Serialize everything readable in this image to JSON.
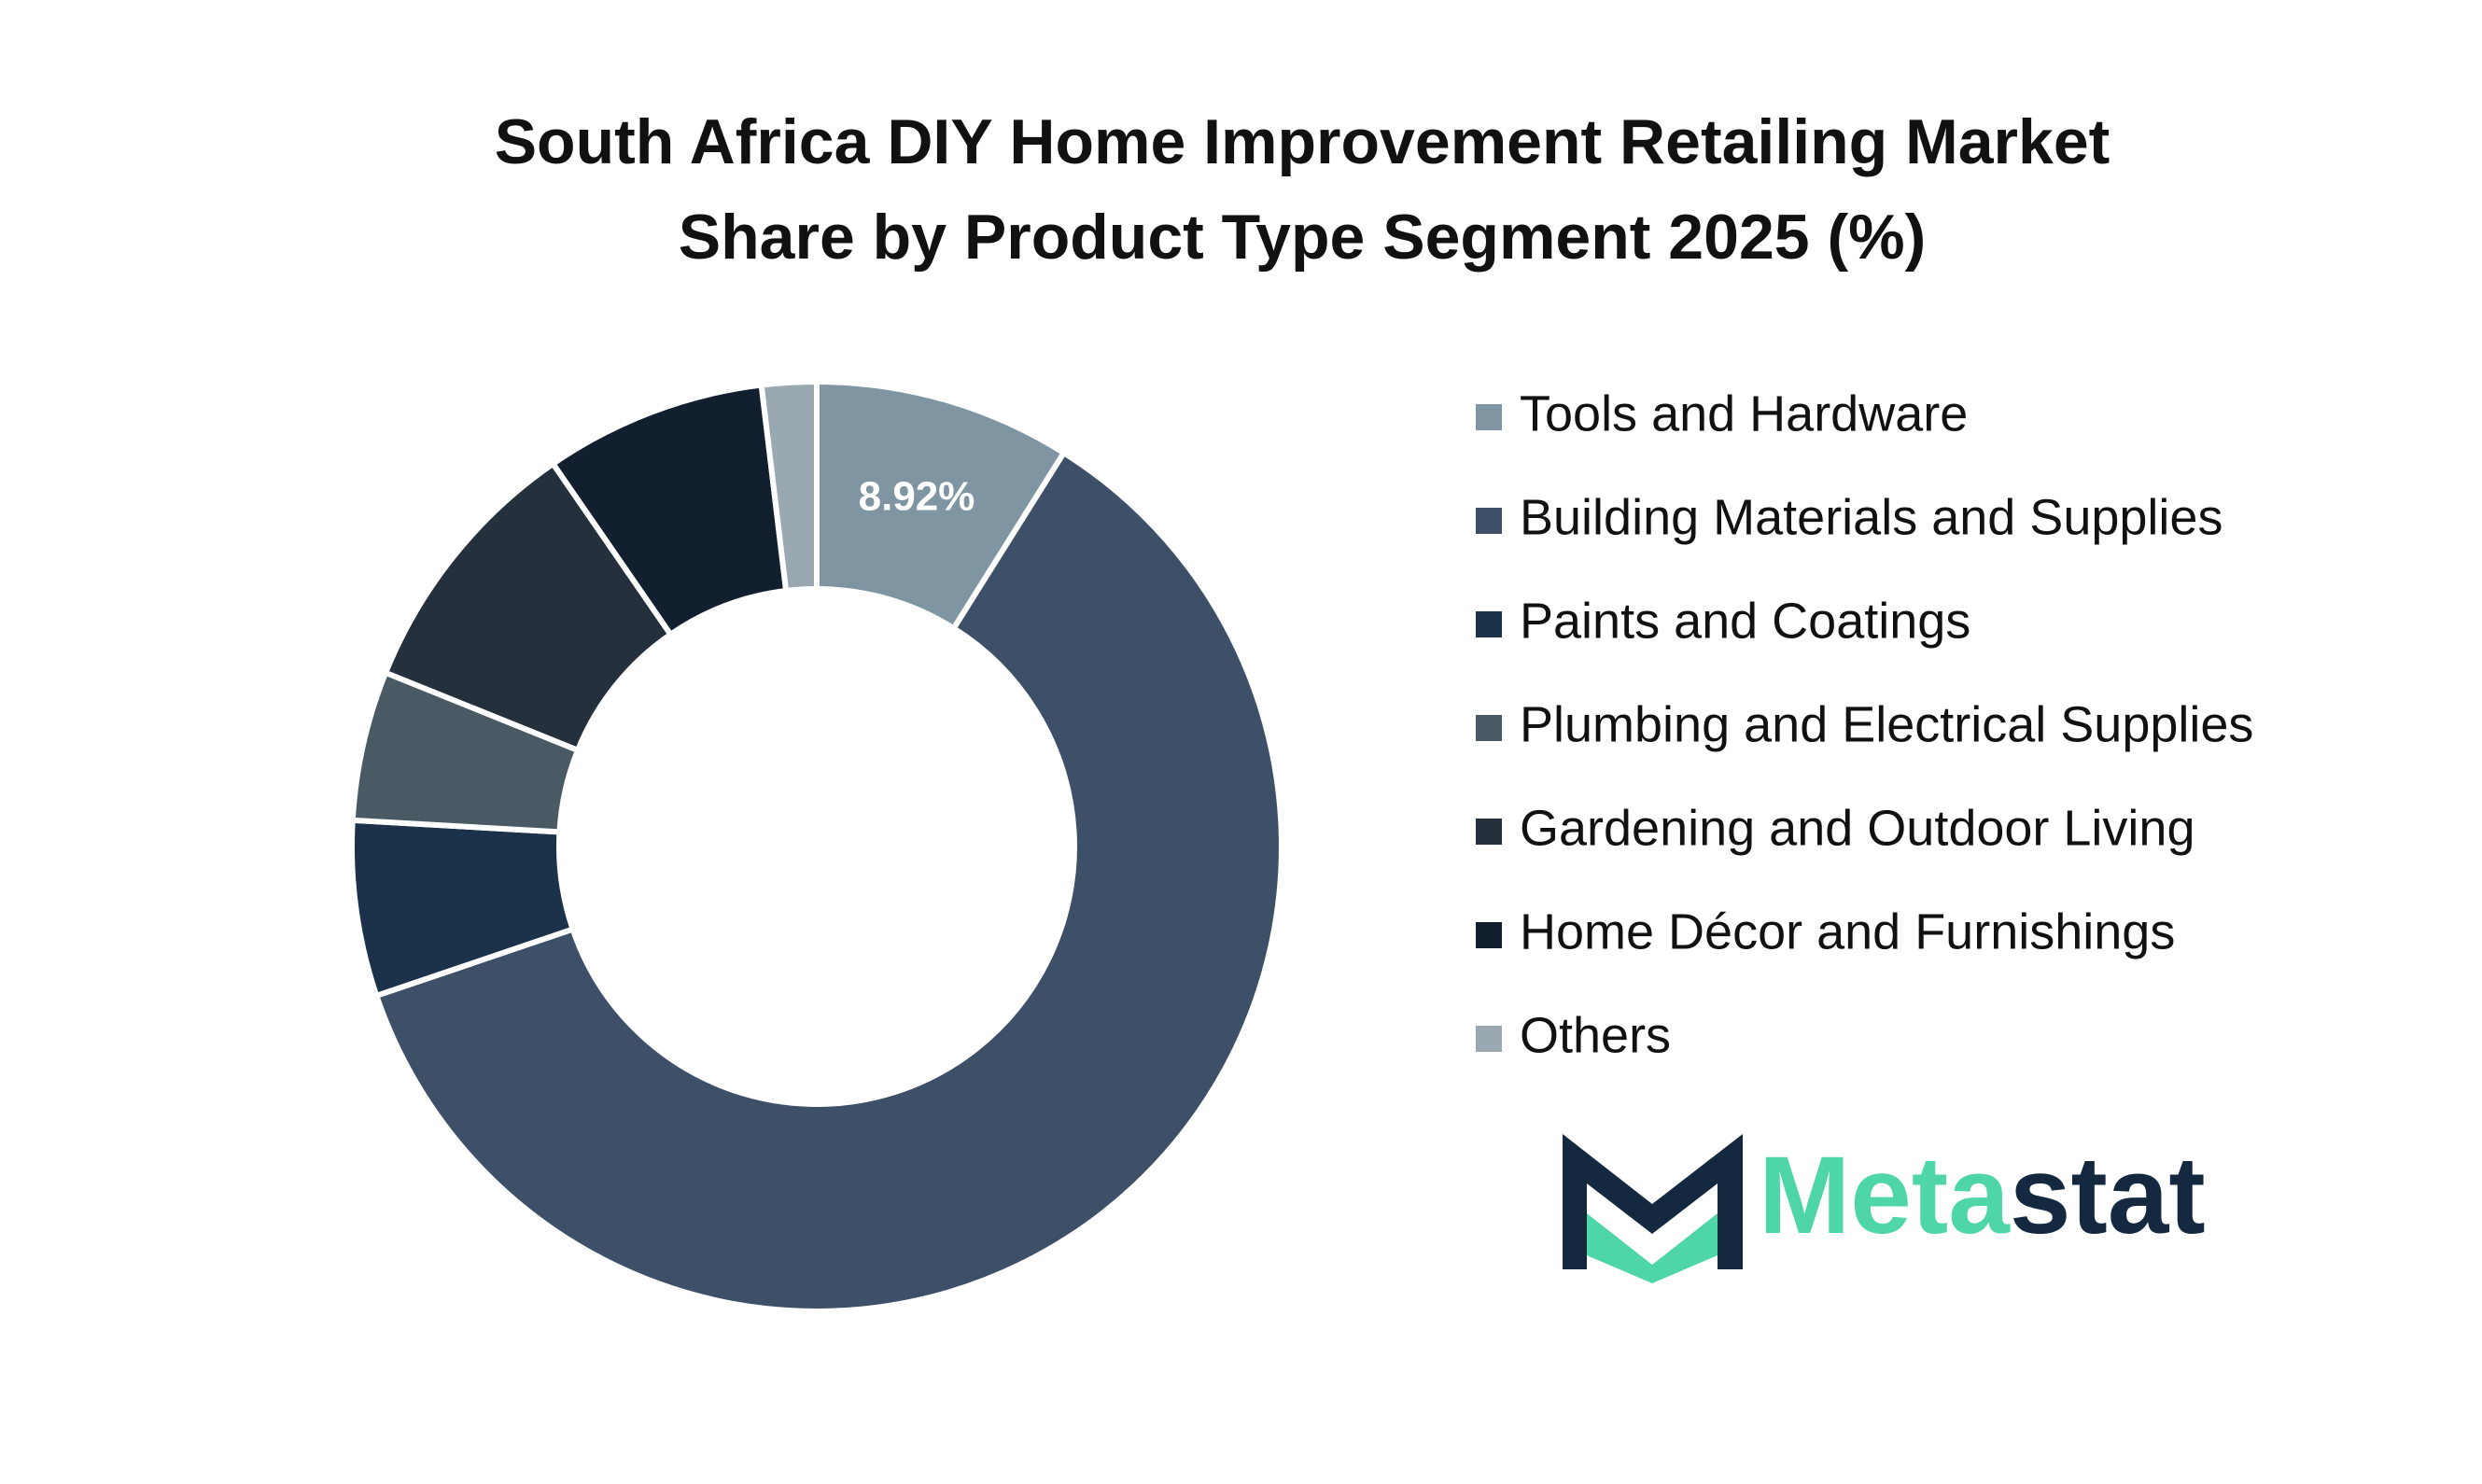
{
  "chart_data": {
    "type": "donut",
    "title": "South Africa DIY Home Improvement Retailing Market Share by Product Type Segment 2025 (%)",
    "categories": [
      "Tools and Hardware",
      "Building Materials and Supplies",
      "Paints and Coatings",
      "Plumbing and Electrical Supplies",
      "Gardening and Outdoor Living",
      "Home Décor and Furnishings",
      "Others"
    ],
    "values": [
      8.92,
      60.88,
      6.1,
      5.2,
      9.3,
      7.7,
      1.9
    ],
    "value_labels": [
      "8.92%",
      null,
      null,
      null,
      null,
      null,
      null
    ],
    "colors": [
      "#7f95a1",
      "#3d5068",
      "#1c324b",
      "#4a5a65",
      "#25303d",
      "#121f2e",
      "#9aa8b1"
    ],
    "legend": "right"
  },
  "brand": {
    "first": "Meta",
    "second": "stat"
  }
}
